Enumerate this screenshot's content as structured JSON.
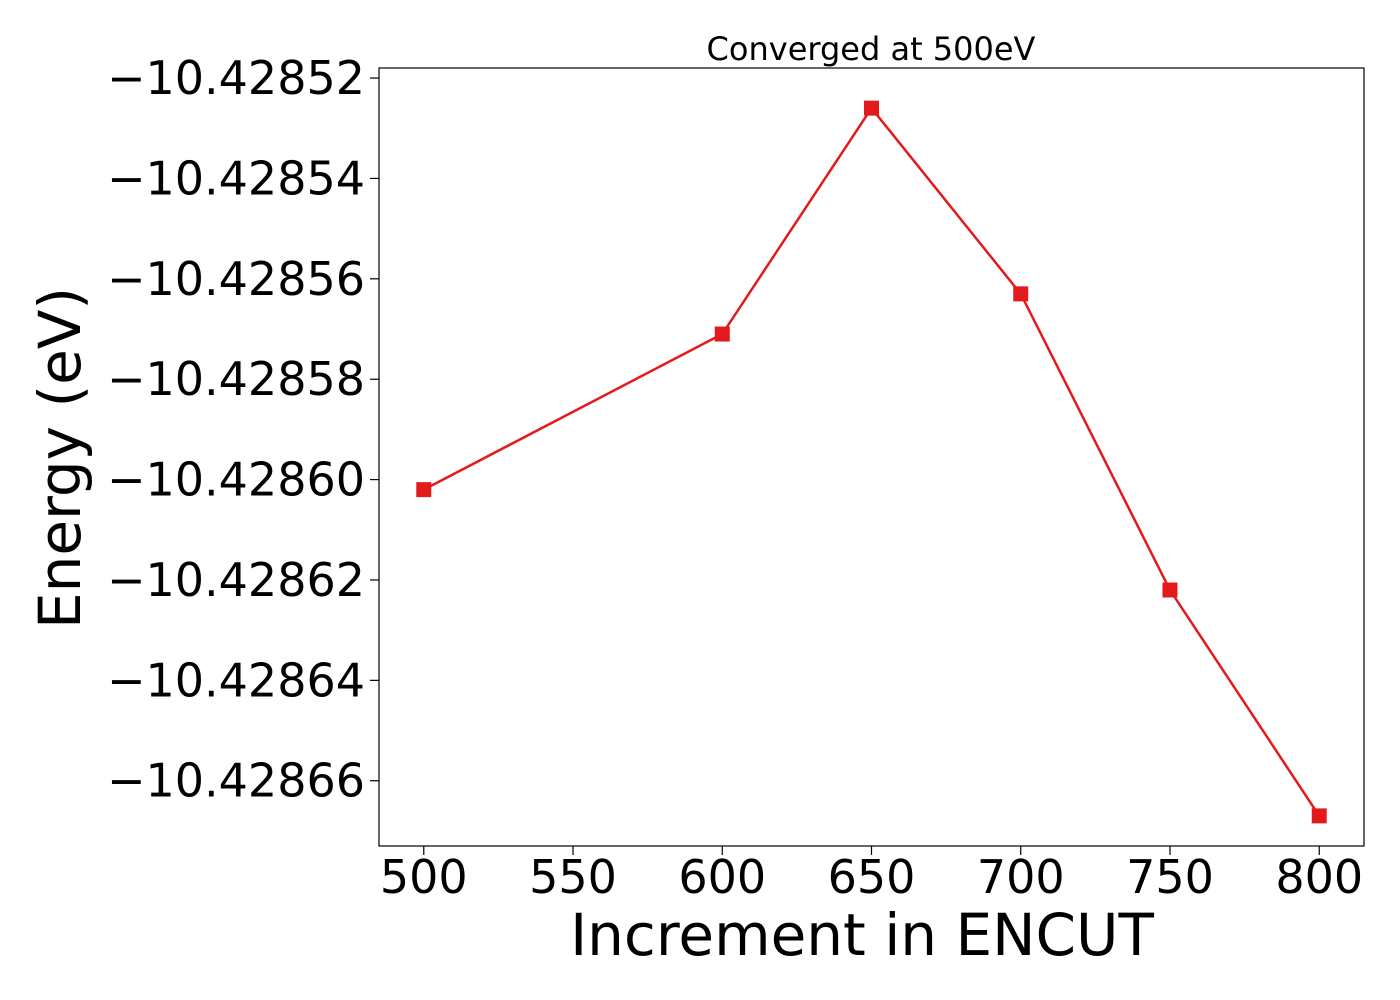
{
  "chart_data": {
    "type": "line",
    "title": "Converged at 500eV",
    "xlabel": "Increment in ENCUT",
    "ylabel": "Energy (eV)",
    "x": [
      500,
      600,
      650,
      700,
      750,
      800
    ],
    "xticks": [
      500,
      550,
      600,
      650,
      700,
      750,
      800
    ],
    "xtick_labels": [
      "500",
      "550",
      "600",
      "650",
      "700",
      "750",
      "800"
    ],
    "yticks": [
      -10.42852,
      -10.42854,
      -10.42856,
      -10.42858,
      -10.4286,
      -10.42862,
      -10.42864,
      -10.42866
    ],
    "ytick_labels": [
      "−10.42852",
      "−10.42854",
      "−10.42856",
      "−10.42858",
      "−10.42860",
      "−10.42862",
      "−10.42864",
      "−10.42866"
    ],
    "xlim": [
      485,
      815
    ],
    "ylim": [
      -10.428673,
      -10.428518
    ],
    "series": [
      {
        "values": [
          -10.428602,
          -10.428571,
          -10.428526,
          -10.428563,
          -10.428622,
          -10.428667
        ],
        "color": "#e31a1c",
        "marker": "square"
      }
    ],
    "grid": false,
    "legend": "none"
  }
}
